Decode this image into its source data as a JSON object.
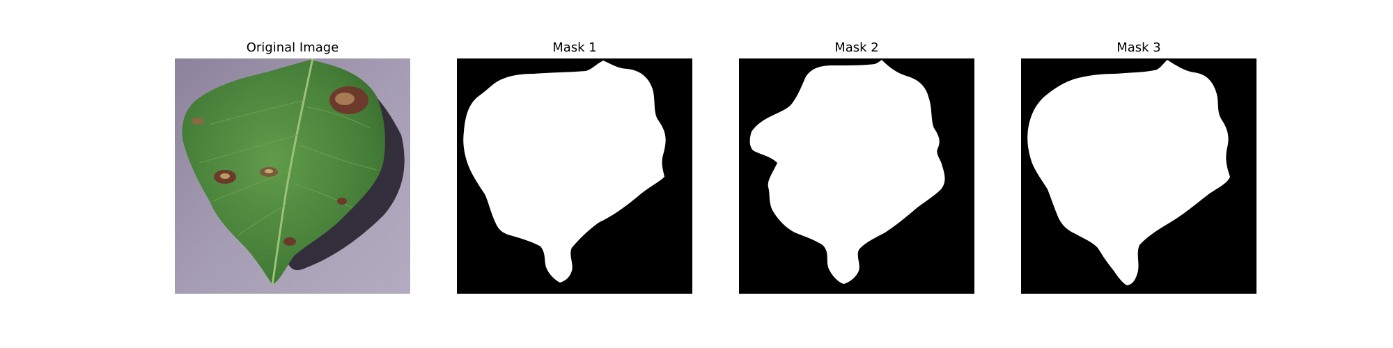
{
  "figure": {
    "panels": [
      {
        "title": "Original Image"
      },
      {
        "title": "Mask 1"
      },
      {
        "title": "Mask 2"
      },
      {
        "title": "Mask 3"
      }
    ]
  },
  "colors": {
    "background": "#ffffff",
    "mask_background": "#000000",
    "mask_foreground": "#ffffff",
    "leaf_green": "#4c8a3a",
    "lesion_brown": "#6b3a2a",
    "photo_surface": "#9a90aa"
  }
}
